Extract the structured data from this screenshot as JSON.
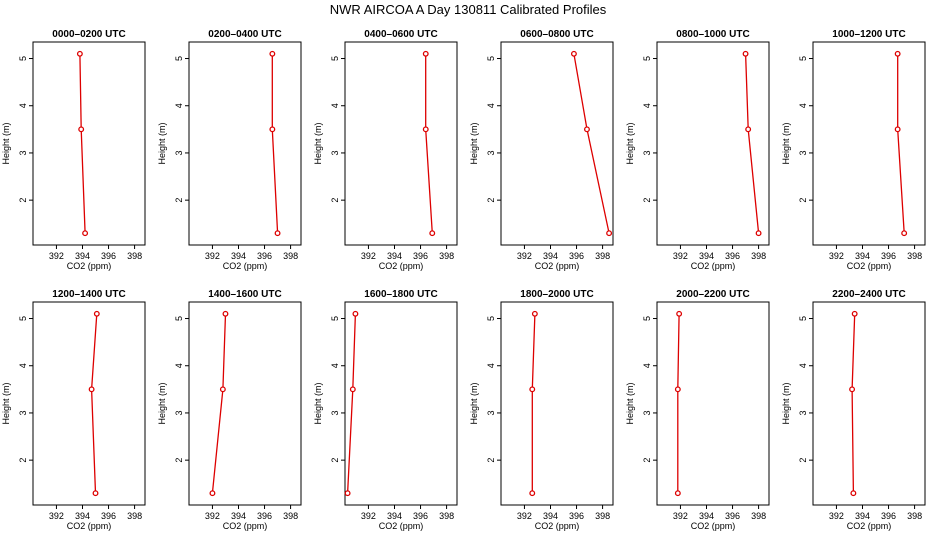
{
  "title": "NWR AIRCOA A  Day 130811  Calibrated Profiles",
  "colors": {
    "line": "#dd0000",
    "frame": "#000000"
  },
  "chart_data": {
    "type": "line",
    "layout": "2x6 small multiples",
    "xlabel": "CO2 (ppm)",
    "ylabel": "Height (m)",
    "xlim": [
      390.2,
      398.8
    ],
    "ylim": [
      1.05,
      5.35
    ],
    "xticks": [
      392,
      394,
      396,
      398
    ],
    "xtick_labels": [
      "392",
      "394",
      "396",
      "398"
    ],
    "yticks": [
      2,
      3,
      4,
      5
    ],
    "ytick_labels": [
      "2",
      "3",
      "4",
      "5"
    ],
    "heights": [
      5.1,
      3.5,
      1.3
    ],
    "panels": [
      {
        "title": "0000–0200 UTC",
        "co2": [
          393.8,
          393.9,
          394.2
        ]
      },
      {
        "title": "0200–0400 UTC",
        "co2": [
          396.6,
          396.6,
          397.0
        ]
      },
      {
        "title": "0400–0600 UTC",
        "co2": [
          396.4,
          396.4,
          396.9
        ]
      },
      {
        "title": "0600–0800 UTC",
        "co2": [
          395.8,
          396.8,
          398.5
        ]
      },
      {
        "title": "0800–1000 UTC",
        "co2": [
          397.0,
          397.2,
          398.0
        ]
      },
      {
        "title": "1000–1200 UTC",
        "co2": [
          396.7,
          396.7,
          397.2
        ]
      },
      {
        "title": "1200–1400 UTC",
        "co2": [
          395.1,
          394.7,
          395.0
        ]
      },
      {
        "title": "1400–1600 UTC",
        "co2": [
          393.0,
          392.8,
          392.0
        ]
      },
      {
        "title": "1600–1800 UTC",
        "co2": [
          391.0,
          390.8,
          390.4
        ]
      },
      {
        "title": "1800–2000 UTC",
        "co2": [
          392.8,
          392.6,
          392.6
        ]
      },
      {
        "title": "2000–2200 UTC",
        "co2": [
          391.9,
          391.8,
          391.8
        ]
      },
      {
        "title": "2200–2400 UTC",
        "co2": [
          393.4,
          393.2,
          393.3
        ]
      }
    ]
  }
}
